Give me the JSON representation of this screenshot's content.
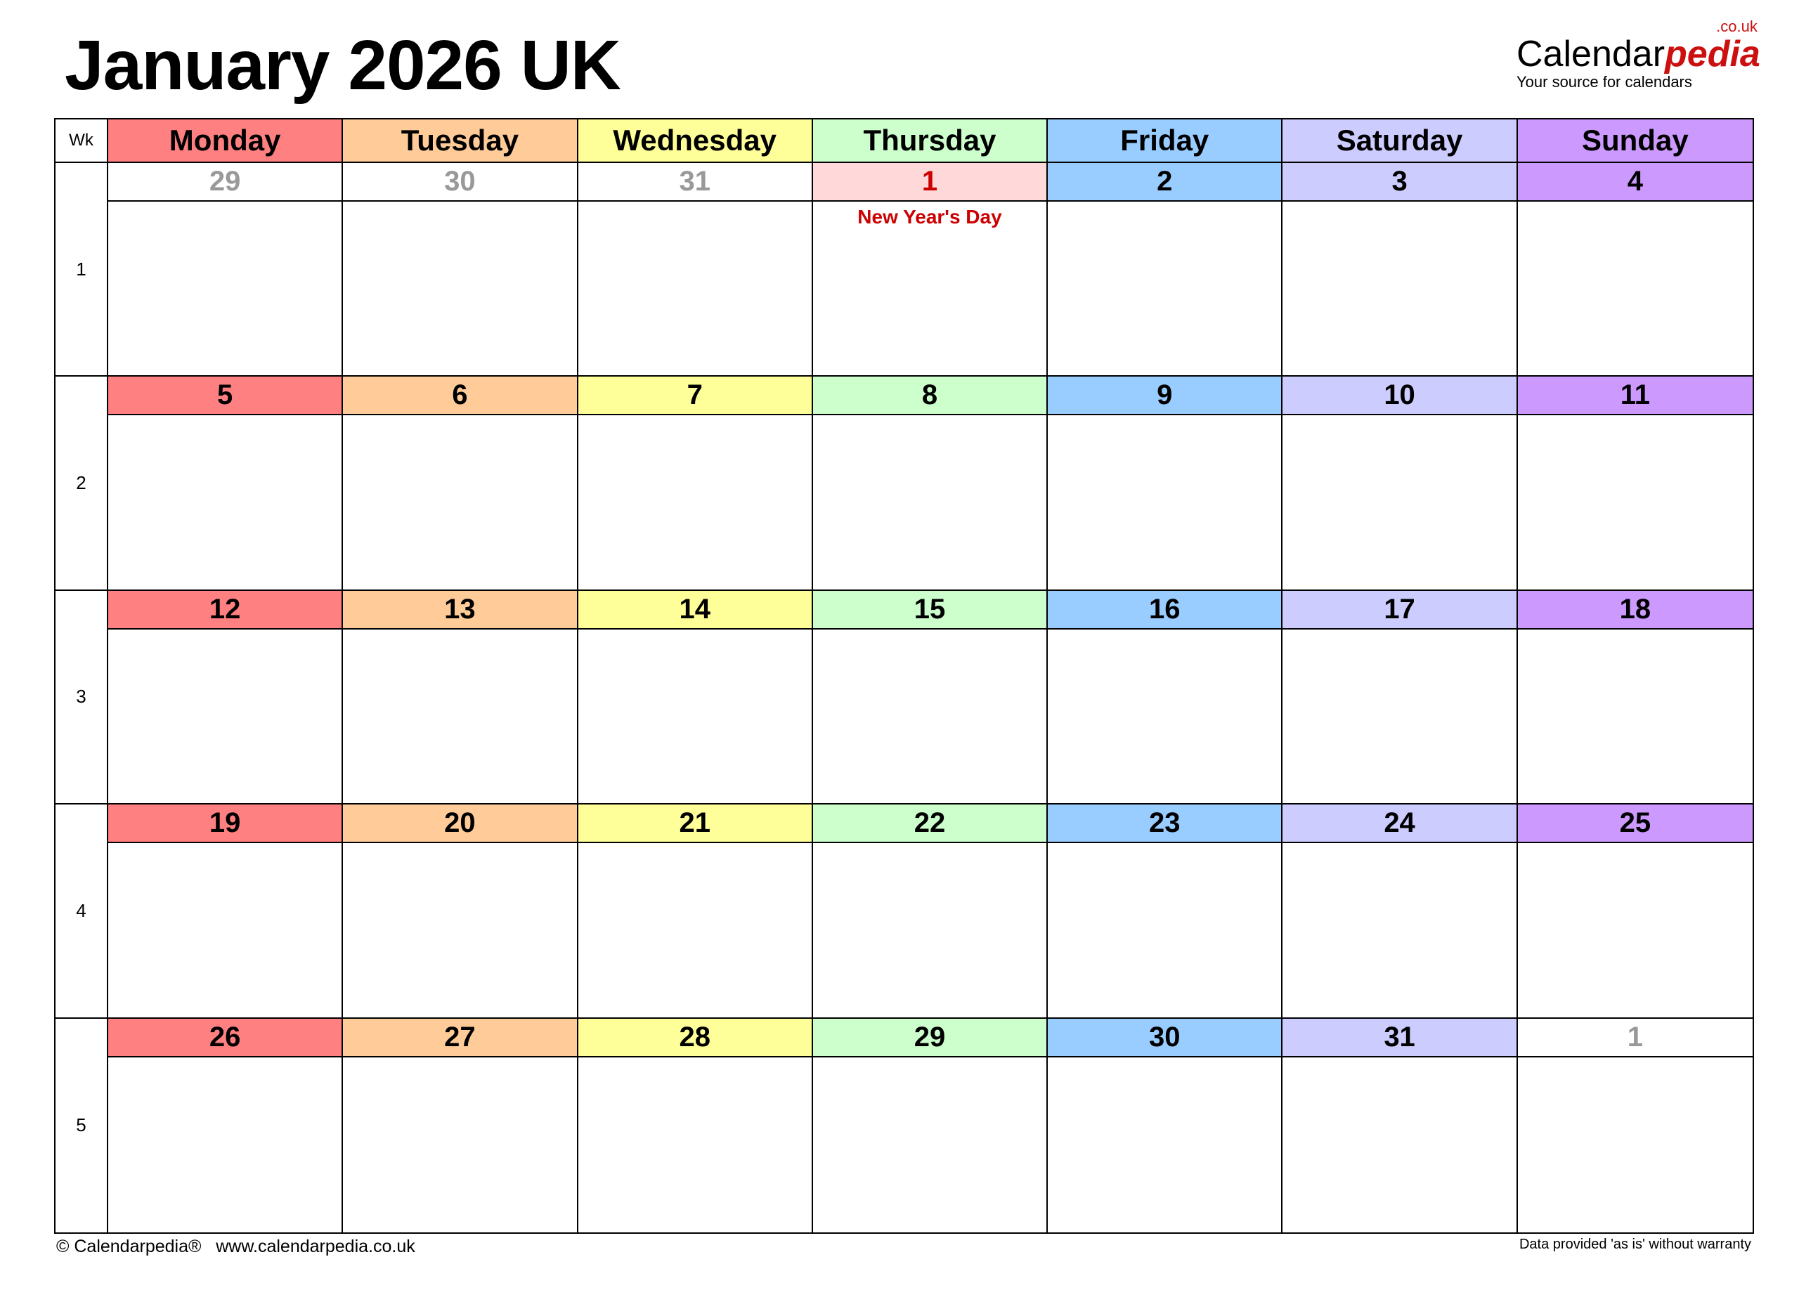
{
  "title": "January 2026 UK",
  "logo": {
    "main": "Calendar",
    "accent": "pedia",
    "domain": ".co.uk",
    "tagline": "Your source for calendars"
  },
  "week_header": "Wk",
  "days": [
    {
      "name": "Monday",
      "color": "#FF8080"
    },
    {
      "name": "Tuesday",
      "color": "#FFCC99"
    },
    {
      "name": "Wednesday",
      "color": "#FFFF99"
    },
    {
      "name": "Thursday",
      "color": "#CCFFCC"
    },
    {
      "name": "Friday",
      "color": "#99CCFF"
    },
    {
      "name": "Saturday",
      "color": "#CCCCFF"
    },
    {
      "name": "Sunday",
      "color": "#CC99FF"
    }
  ],
  "holiday_color": "#CC0000",
  "holiday_bg": "#FFD9D9",
  "weeks": [
    {
      "wk": "1",
      "dates": [
        {
          "d": "29",
          "other": true
        },
        {
          "d": "30",
          "other": true
        },
        {
          "d": "31",
          "other": true
        },
        {
          "d": "1",
          "holiday": "New Year's Day"
        },
        {
          "d": "2"
        },
        {
          "d": "3"
        },
        {
          "d": "4"
        }
      ]
    },
    {
      "wk": "2",
      "dates": [
        {
          "d": "5"
        },
        {
          "d": "6"
        },
        {
          "d": "7"
        },
        {
          "d": "8"
        },
        {
          "d": "9"
        },
        {
          "d": "10"
        },
        {
          "d": "11"
        }
      ]
    },
    {
      "wk": "3",
      "dates": [
        {
          "d": "12"
        },
        {
          "d": "13"
        },
        {
          "d": "14"
        },
        {
          "d": "15"
        },
        {
          "d": "16"
        },
        {
          "d": "17"
        },
        {
          "d": "18"
        }
      ]
    },
    {
      "wk": "4",
      "dates": [
        {
          "d": "19"
        },
        {
          "d": "20"
        },
        {
          "d": "21"
        },
        {
          "d": "22"
        },
        {
          "d": "23"
        },
        {
          "d": "24"
        },
        {
          "d": "25"
        }
      ]
    },
    {
      "wk": "5",
      "dates": [
        {
          "d": "26"
        },
        {
          "d": "27"
        },
        {
          "d": "28"
        },
        {
          "d": "29"
        },
        {
          "d": "30"
        },
        {
          "d": "31"
        },
        {
          "d": "1",
          "other": true
        }
      ]
    }
  ],
  "footer": {
    "left": "© Calendarpedia®   www.calendarpedia.co.uk",
    "right": "Data provided 'as is' without warranty"
  }
}
